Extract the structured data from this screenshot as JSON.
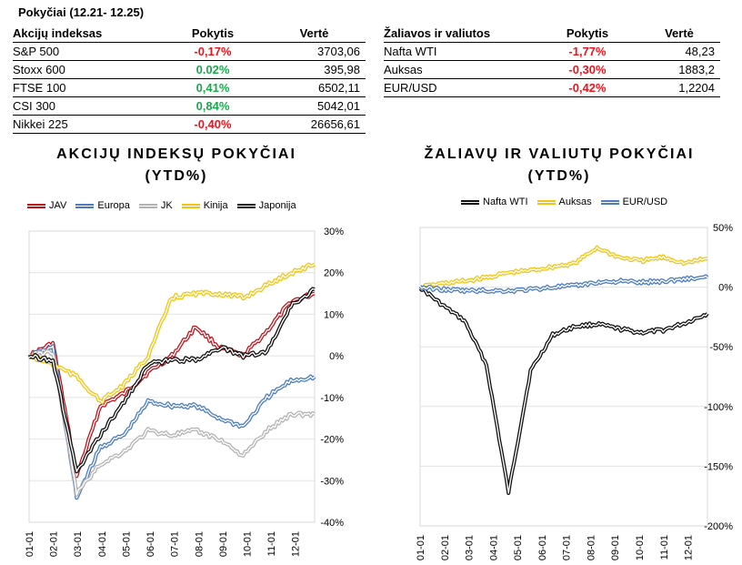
{
  "period_title": "Pokyčiai (12.21- 12.25)",
  "indices_table": {
    "headers": [
      "Akcijų indeksas",
      "Pokytis",
      "Vertė"
    ],
    "rows": [
      {
        "name": "S&P 500",
        "change": "-0,17%",
        "value": "3703,06",
        "dir": "neg"
      },
      {
        "name": "Stoxx 600",
        "change": "0.02%",
        "value": "395,98",
        "dir": "pos"
      },
      {
        "name": "FTSE 100",
        "change": "0,41%",
        "value": "6502,11",
        "dir": "pos"
      },
      {
        "name": "CSI 300",
        "change": "0,84%",
        "value": "5042,01",
        "dir": "pos"
      },
      {
        "name": "Nikkei 225",
        "change": "-0,40%",
        "value": "26656,61",
        "dir": "neg"
      }
    ]
  },
  "commodities_table": {
    "headers": [
      "Žaliavos ir valiutos",
      "Pokytis",
      "Vertė"
    ],
    "rows": [
      {
        "name": "Nafta WTI",
        "change": "-1,77%",
        "value": "48,23",
        "dir": "neg"
      },
      {
        "name": "Auksas",
        "change": "-0,30%",
        "value": "1883,2",
        "dir": "neg"
      },
      {
        "name": "EUR/USD",
        "change": "-0,42%",
        "value": "1,2204",
        "dir": "neg"
      }
    ]
  },
  "chart_data": [
    {
      "type": "line",
      "title": "AKCIJŲ INDEKSŲ POKYČIAI",
      "subtitle": "(YTD%)",
      "x": [
        "01-01",
        "02-01",
        "03-01",
        "04-01",
        "05-01",
        "06-01",
        "07-01",
        "08-01",
        "09-01",
        "10-01",
        "11-01",
        "12-01",
        "12-25"
      ],
      "xticks": [
        "01-01",
        "02-01",
        "03-01",
        "04-01",
        "05-01",
        "06-01",
        "07-01",
        "08-01",
        "09-01",
        "10-01",
        "11-01",
        "12-01"
      ],
      "yticks": [
        "30%",
        "20%",
        "10%",
        "0%",
        "-10%",
        "-20%",
        "-30%",
        "-40%"
      ],
      "ylim": [
        -40,
        30
      ],
      "legend_position": "top",
      "series": [
        {
          "name": "JAV",
          "color": "#c0141c",
          "values": [
            0,
            3,
            -29,
            -12,
            -9,
            -4,
            0,
            7,
            2,
            0,
            6,
            13,
            15
          ]
        },
        {
          "name": "Europa",
          "color": "#4a7bc4",
          "values": [
            0,
            2,
            -34,
            -22,
            -19,
            -11,
            -12,
            -12,
            -15,
            -17,
            -10,
            -6,
            -5
          ]
        },
        {
          "name": "JK",
          "color": "#b3b3b3",
          "values": [
            0,
            1,
            -33,
            -26,
            -23,
            -18,
            -19,
            -18,
            -20,
            -24,
            -18,
            -14,
            -14
          ]
        },
        {
          "name": "Kinija",
          "color": "#f2c40f",
          "values": [
            0,
            -2,
            -5,
            -11,
            -7,
            0,
            14,
            15,
            15,
            14,
            17,
            20,
            22
          ]
        },
        {
          "name": "Japonija",
          "color": "#111111",
          "values": [
            0,
            -1,
            -28,
            -19,
            -11,
            -2,
            -1,
            -1,
            2,
            0,
            1,
            12,
            16
          ]
        }
      ]
    },
    {
      "type": "line",
      "title": "ŽALIAVŲ IR VALIUTŲ POKYČIAI",
      "subtitle": "(YTD%)",
      "x": [
        "01-01",
        "02-01",
        "03-01",
        "04-01",
        "04-20",
        "05-01",
        "06-01",
        "07-01",
        "08-01",
        "09-01",
        "10-01",
        "11-01",
        "12-01",
        "12-25"
      ],
      "xticks": [
        "01-01",
        "02-01",
        "03-01",
        "04-01",
        "05-01",
        "06-01",
        "07-01",
        "08-01",
        "09-01",
        "10-01",
        "11-01",
        "12-01"
      ],
      "yticks": [
        "50%",
        "0%",
        "-50%",
        "-100%",
        "-150%",
        "-200%"
      ],
      "ylim": [
        -200,
        50
      ],
      "legend_position": "top",
      "series": [
        {
          "name": "Nafta WTI",
          "color": "#111111",
          "values": [
            0,
            -15,
            -28,
            -65,
            -172,
            -70,
            -40,
            -33,
            -31,
            -35,
            -38,
            -36,
            -30,
            -22
          ]
        },
        {
          "name": "Auksas",
          "color": "#f2c40f",
          "values": [
            0,
            3,
            5,
            8,
            12,
            14,
            17,
            20,
            33,
            25,
            22,
            25,
            20,
            24
          ]
        },
        {
          "name": "EUR/USD",
          "color": "#4a7bc4",
          "values": [
            0,
            -2,
            -3,
            -3,
            -3,
            -2,
            0,
            1,
            4,
            5,
            4,
            5,
            7,
            8
          ]
        }
      ]
    }
  ]
}
